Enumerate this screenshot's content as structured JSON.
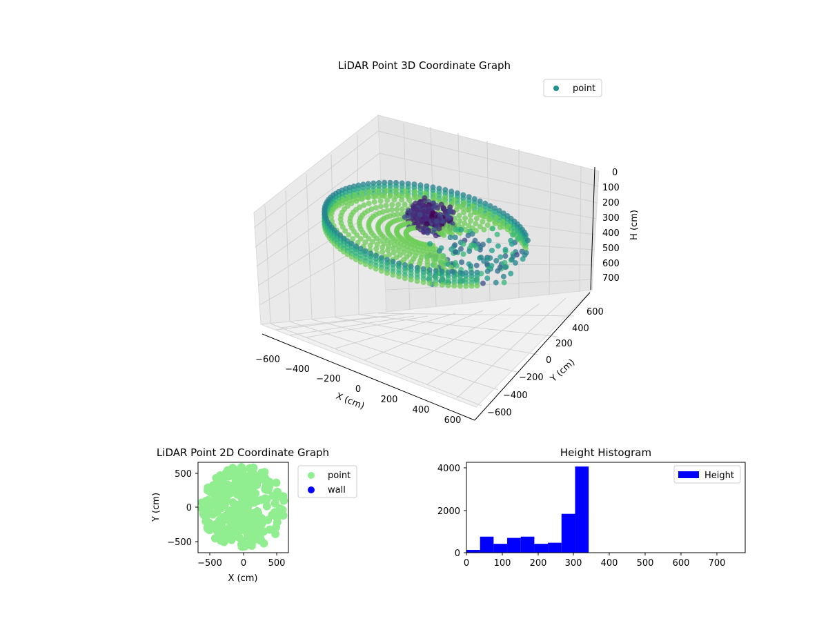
{
  "figure": {
    "panel_3d": {
      "title": "LiDAR Point 3D Coordinate Graph",
      "legend_label": "point",
      "legend_location": "upper-right",
      "colormap": "viridis",
      "xlabel": "X (cm)",
      "ylabel": "Y (cm)",
      "zlabel": "H (cm)",
      "x_ticks": [
        "−600",
        "−400",
        "−200",
        "0",
        "200",
        "400",
        "600"
      ],
      "y_ticks": [
        "600",
        "400",
        "200",
        "0",
        "−200",
        "−400",
        "−600"
      ],
      "h_ticks": [
        "0",
        "100",
        "200",
        "300",
        "400",
        "500",
        "600",
        "700"
      ]
    },
    "panel_2d": {
      "title": "LiDAR Point 2D Coordinate Graph",
      "xlabel": "X (cm)",
      "ylabel": "Y (cm)",
      "x_ticks": [
        "−500",
        "0",
        "500"
      ],
      "y_ticks": [
        "500",
        "0",
        "−500"
      ],
      "legend": [
        {
          "label": "point",
          "color": "#90ee90"
        },
        {
          "label": "wall",
          "color": "#0000ff"
        }
      ]
    },
    "panel_hist": {
      "title": "Height Histogram",
      "legend_label": "Height",
      "bar_color": "#0000ff",
      "x_ticks": [
        "0",
        "100",
        "200",
        "300",
        "400",
        "500",
        "600",
        "700"
      ],
      "y_ticks": [
        "0",
        "2000",
        "4000"
      ]
    }
  },
  "chart_data": [
    {
      "type": "scatter",
      "title": "LiDAR Point 3D Coordinate Graph",
      "xlabel": "X (cm)",
      "ylabel": "Y (cm)",
      "zlabel": "H (cm)",
      "series": [
        {
          "name": "point"
        }
      ],
      "xlim": [
        -650,
        650
      ],
      "ylim": [
        -650,
        650
      ],
      "zlim": [
        770,
        0
      ],
      "color_encoding": "height (viridis)",
      "shape": "ring of radius ~600 cm with points at heights ~300–400 cm; dense cluster near x≈-50, y≈200; open sector on the +X side",
      "grid": true,
      "legend": "upper-right"
    },
    {
      "type": "scatter",
      "title": "LiDAR Point 2D Coordinate Graph",
      "xlabel": "X (cm)",
      "ylabel": "Y (cm)",
      "xlim": [
        -650,
        650
      ],
      "ylim": [
        -650,
        650
      ],
      "series": [
        {
          "name": "point",
          "color": "#90ee90",
          "shape": "filled disk of radius ~600 cm, ragged on the +X side"
        },
        {
          "name": "wall",
          "color": "#0000ff",
          "points": 0
        }
      ],
      "legend": "outside-right"
    },
    {
      "type": "bar",
      "title": "Height Histogram",
      "series": [
        {
          "name": "Height",
          "color": "#0000ff"
        }
      ],
      "bin_edges": [
        0,
        38,
        76,
        114,
        152,
        190,
        228,
        266,
        304,
        342,
        380,
        418,
        456,
        494,
        532,
        570,
        608,
        646,
        684,
        722,
        760
      ],
      "values": [
        130,
        760,
        420,
        700,
        760,
        420,
        470,
        1840,
        4080,
        0,
        0,
        0,
        0,
        0,
        0,
        0,
        0,
        0,
        0,
        0
      ],
      "xlim": [
        0,
        780
      ],
      "ylim": [
        0,
        4280
      ],
      "legend": "upper-right"
    }
  ]
}
